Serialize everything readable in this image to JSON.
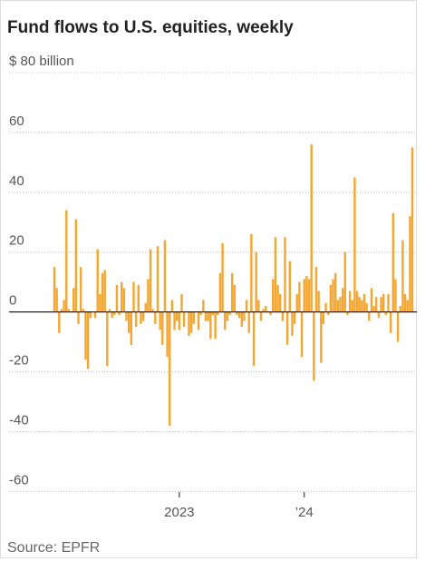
{
  "chart_data": {
    "type": "bar",
    "title": "Fund flows to U.S. equities, weekly",
    "source": "Source: EPFR",
    "color": "#f5a631",
    "ylim": [
      -62,
      80
    ],
    "yticks": [
      {
        "value": 80,
        "label": "$ 80 billion"
      },
      60,
      40,
      20,
      0,
      -20,
      -40,
      -60
    ],
    "grid": true,
    "categories": [
      null,
      null,
      null,
      null,
      null,
      null,
      null,
      null,
      null,
      null,
      null,
      null,
      null,
      null,
      null,
      null,
      null,
      null,
      null,
      null,
      null,
      null,
      null,
      null,
      null,
      null,
      null,
      null,
      null,
      null,
      null,
      null,
      null,
      null,
      null,
      null,
      null,
      null,
      null,
      null,
      null,
      null,
      null,
      null,
      null,
      null,
      null,
      null,
      null,
      null,
      null,
      null,
      "2023",
      null,
      null,
      null,
      null,
      null,
      null,
      null,
      null,
      null,
      null,
      null,
      null,
      null,
      null,
      null,
      null,
      null,
      null,
      null,
      null,
      null,
      null,
      null,
      null,
      null,
      null,
      null,
      null,
      null,
      null,
      null,
      null,
      null,
      null,
      null,
      null,
      null,
      null,
      null,
      null,
      null,
      null,
      null,
      null,
      null,
      null,
      null,
      null,
      null,
      null,
      null,
      "’24",
      null,
      null,
      null,
      null,
      null,
      null,
      null,
      null,
      null,
      null,
      null,
      null,
      null,
      null,
      null,
      null,
      null,
      null,
      null,
      null,
      null,
      null,
      null,
      null,
      null,
      null,
      null,
      null,
      null,
      null,
      null,
      null,
      null,
      null,
      null,
      null,
      null,
      null,
      null,
      null,
      null,
      null,
      null,
      null,
      null
    ],
    "values": [
      15,
      8,
      -7,
      1,
      4,
      34,
      1,
      0,
      8,
      31,
      -4,
      15,
      1,
      -16,
      -19,
      -2,
      0,
      -2,
      21,
      6,
      13,
      14,
      -18,
      1,
      -2,
      -1,
      9,
      -1,
      10,
      8,
      -3,
      -7,
      -11,
      10,
      -5,
      9,
      -4,
      -3,
      3,
      11,
      21,
      1,
      -4,
      22,
      -6,
      -11,
      24,
      -15,
      -38,
      4,
      -6,
      -3,
      -6,
      6,
      -5,
      0,
      -8,
      -7,
      -4,
      0,
      -6,
      -1,
      4,
      -3,
      -3,
      -9,
      -1,
      -9,
      -1,
      13,
      23,
      -6,
      -3,
      -1,
      13,
      9,
      -1,
      -2,
      -5,
      -3,
      4,
      -7,
      26,
      -18,
      20,
      4,
      -3,
      1,
      2,
      0,
      -1,
      11,
      25,
      9,
      6,
      -3,
      25,
      -11,
      17,
      -8,
      -4,
      6,
      10,
      -15,
      11,
      12,
      11,
      56,
      -23,
      15,
      7,
      -17,
      -4,
      3,
      -1,
      9,
      11,
      13,
      4,
      5,
      8,
      20,
      -1,
      7,
      4,
      45,
      7,
      5,
      4,
      6,
      3,
      -3,
      8,
      2,
      5,
      -2,
      5,
      6,
      -1,
      6,
      -7,
      33,
      11,
      -10,
      2,
      24,
      6,
      4,
      32,
      55
    ]
  }
}
